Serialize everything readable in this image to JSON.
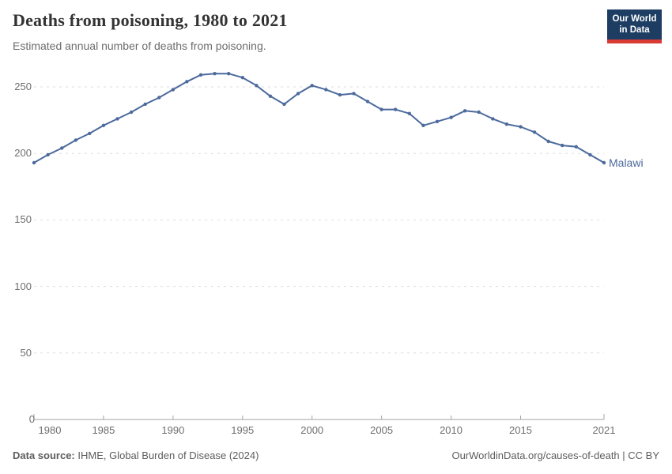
{
  "header": {
    "title": "Deaths from poisoning, 1980 to 2021",
    "subtitle": "Estimated annual number of deaths from poisoning.",
    "logo": {
      "line1": "Our World",
      "line2": "in Data"
    }
  },
  "chart_data": {
    "type": "line",
    "title": "Deaths from poisoning, 1980 to 2021",
    "x": [
      1980,
      1981,
      1982,
      1983,
      1984,
      1985,
      1986,
      1987,
      1988,
      1989,
      1990,
      1991,
      1992,
      1993,
      1994,
      1995,
      1996,
      1997,
      1998,
      1999,
      2000,
      2001,
      2002,
      2003,
      2004,
      2005,
      2006,
      2007,
      2008,
      2009,
      2010,
      2011,
      2012,
      2013,
      2014,
      2015,
      2016,
      2017,
      2018,
      2019,
      2020,
      2021
    ],
    "series": [
      {
        "name": "Malawi",
        "values": [
          193,
          199,
          204,
          210,
          215,
          221,
          226,
          231,
          237,
          242,
          248,
          254,
          259,
          260,
          260,
          257,
          251,
          243,
          237,
          245,
          251,
          248,
          244,
          245,
          239,
          233,
          233,
          230,
          221,
          224,
          227,
          232,
          231,
          226,
          222,
          220,
          216,
          209,
          206,
          205,
          199,
          193
        ]
      }
    ],
    "xlabel": "",
    "ylabel": "",
    "xlim": [
      1980,
      2021
    ],
    "ylim": [
      0,
      250
    ],
    "yticks": [
      0,
      50,
      100,
      150,
      200,
      250
    ],
    "xticks": [
      1980,
      1985,
      1990,
      1995,
      2000,
      2005,
      2010,
      2015,
      2021
    ],
    "grid": "horizontal-dashed",
    "legend": "entity-label-right"
  },
  "footer": {
    "source_label": "Data source:",
    "source_text": " IHME, Global Burden of Disease (2024)",
    "citation": "OurWorldinData.org/causes-of-death | CC BY"
  },
  "colors": {
    "line": "#4C6A9C",
    "entity_label": "#4C6A9C",
    "logo_bg": "#1D3D63",
    "logo_red": "#D93A34",
    "grid": "#DEDEDE",
    "axis": "#A3A3A3",
    "tick_label": "#6E6E6E"
  }
}
